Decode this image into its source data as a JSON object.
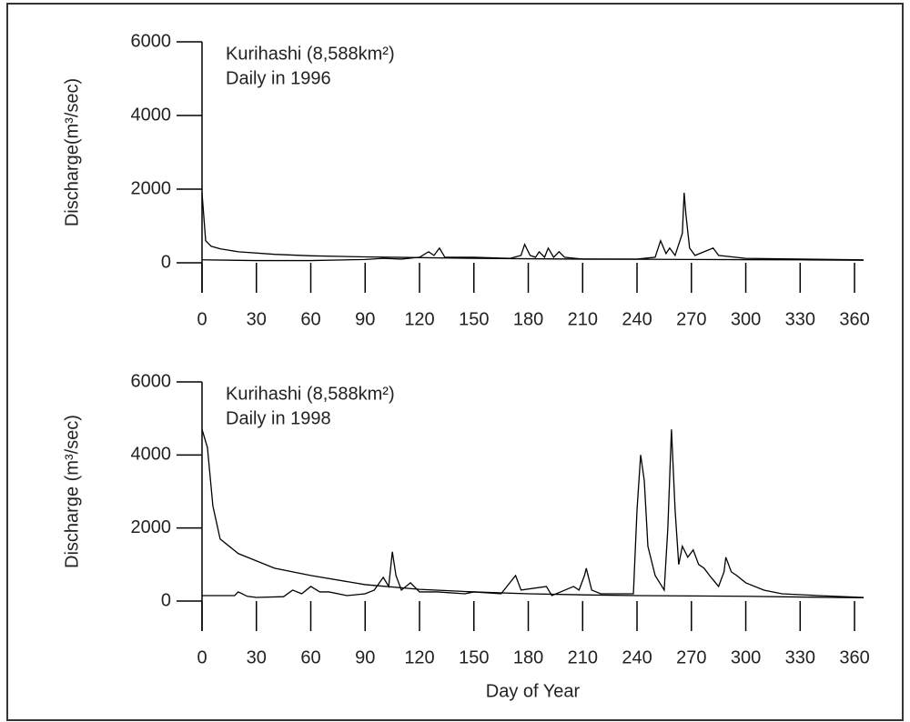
{
  "chart_data": [
    {
      "type": "line",
      "annotations": [
        "Kurihashi (8,588km²)",
        "Daily in 1996"
      ],
      "ylabel": "Discharge(m³/sec)",
      "xlim": [
        0,
        365
      ],
      "xticks": [
        0,
        30,
        60,
        90,
        120,
        150,
        180,
        210,
        240,
        270,
        300,
        330,
        360
      ],
      "ylim": [
        0,
        6000
      ],
      "yticks": [
        0,
        2000,
        4000,
        6000
      ],
      "series": [
        {
          "color": "#000000",
          "x": [
            0,
            30,
            60,
            90,
            100,
            110,
            120,
            125,
            128,
            131,
            134,
            150,
            170,
            176,
            178,
            181,
            184,
            186,
            189,
            191,
            194,
            197,
            200,
            210,
            240,
            250,
            253,
            256,
            258,
            261,
            265,
            266,
            267,
            269,
            272,
            282,
            285,
            300,
            330,
            365
          ],
          "values": [
            80,
            60,
            60,
            90,
            120,
            100,
            150,
            300,
            200,
            400,
            150,
            150,
            120,
            200,
            500,
            200,
            150,
            300,
            150,
            400,
            150,
            300,
            150,
            100,
            100,
            150,
            600,
            250,
            400,
            200,
            800,
            1900,
            1300,
            400,
            200,
            400,
            200,
            120,
            100,
            80
          ]
        },
        {
          "color": "#000000",
          "x": [
            0,
            2,
            5,
            10,
            20,
            40,
            60,
            90,
            120,
            150,
            180,
            210,
            240,
            270,
            300,
            330,
            365
          ],
          "values": [
            1900,
            600,
            450,
            380,
            300,
            230,
            190,
            160,
            140,
            120,
            110,
            100,
            95,
            90,
            85,
            80,
            70
          ]
        }
      ]
    },
    {
      "type": "line",
      "annotations": [
        "Kurihashi (8,588km²)",
        "Daily in 1998"
      ],
      "ylabel": "Discharge (m³/sec)",
      "xlabel": "Day of Year",
      "xlim": [
        0,
        365
      ],
      "xticks": [
        0,
        30,
        60,
        90,
        120,
        150,
        180,
        210,
        240,
        270,
        300,
        330,
        360
      ],
      "ylim": [
        0,
        6000
      ],
      "yticks": [
        0,
        2000,
        4000,
        6000
      ],
      "series": [
        {
          "color": "#000000",
          "x": [
            0,
            18,
            20,
            25,
            30,
            45,
            50,
            55,
            60,
            65,
            70,
            80,
            90,
            95,
            100,
            103,
            105,
            107,
            110,
            115,
            120,
            130,
            145,
            150,
            165,
            173,
            176,
            190,
            193,
            205,
            208,
            211,
            212,
            215,
            220,
            238,
            240,
            242,
            244,
            246,
            250,
            255,
            257,
            259,
            261,
            263,
            265,
            268,
            271,
            274,
            277,
            280,
            285,
            288,
            289,
            292,
            295,
            300,
            310,
            320,
            340,
            365
          ],
          "values": [
            150,
            150,
            250,
            130,
            100,
            120,
            300,
            200,
            400,
            250,
            250,
            150,
            200,
            300,
            650,
            400,
            1350,
            700,
            300,
            500,
            250,
            250,
            200,
            250,
            200,
            700,
            300,
            400,
            150,
            400,
            300,
            700,
            900,
            300,
            200,
            200,
            2500,
            4000,
            3300,
            1500,
            700,
            300,
            2000,
            4700,
            2500,
            1000,
            1500,
            1200,
            1400,
            1000,
            900,
            700,
            400,
            800,
            1200,
            800,
            700,
            500,
            300,
            200,
            150,
            100
          ]
        },
        {
          "color": "#000000",
          "x": [
            0,
            3,
            6,
            10,
            20,
            40,
            60,
            90,
            120,
            150,
            180,
            210,
            240,
            270,
            300,
            330,
            365
          ],
          "values": [
            4700,
            4200,
            2600,
            1700,
            1300,
            900,
            700,
            450,
            320,
            250,
            200,
            170,
            150,
            140,
            130,
            110,
            90
          ]
        }
      ]
    }
  ]
}
